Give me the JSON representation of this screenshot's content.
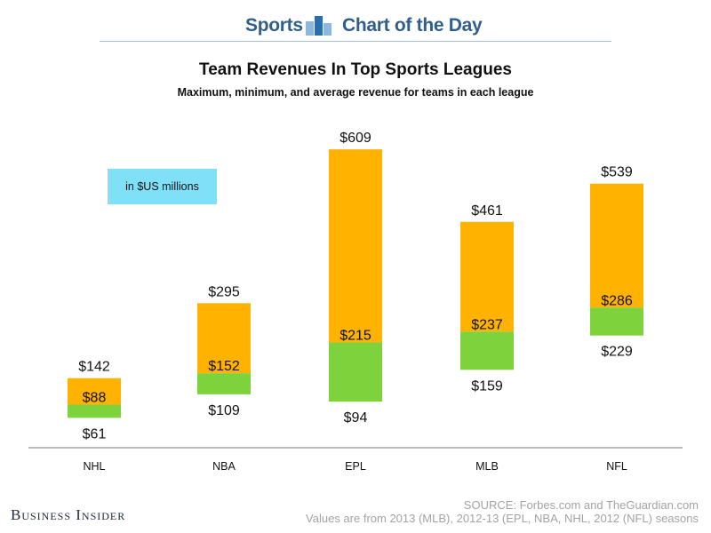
{
  "header": {
    "section": "Sports",
    "feature": "Chart of the Day"
  },
  "chart_data": {
    "type": "bar",
    "title": "Team Revenues In Top Sports Leagues",
    "subtitle": "Maximum, minimum, and average revenue for teams in each league",
    "units_note": "in $US millions",
    "categories": [
      "NHL",
      "NBA",
      "EPL",
      "MLB",
      "NFL"
    ],
    "series": [
      {
        "name": "Maximum",
        "values": [
          142,
          295,
          609,
          461,
          539
        ],
        "labels": [
          "$142",
          "$295",
          "$609",
          "$461",
          "$539"
        ]
      },
      {
        "name": "Average",
        "values": [
          88,
          152,
          215,
          237,
          286
        ],
        "labels": [
          "$88",
          "$152",
          "$215",
          "$237",
          "$286"
        ]
      },
      {
        "name": "Minimum",
        "values": [
          61,
          109,
          94,
          159,
          229
        ],
        "labels": [
          "$61",
          "$109",
          "$94",
          "$159",
          "$229"
        ]
      }
    ],
    "ylim": [
      0,
      660
    ],
    "colors": {
      "upper": "#ffb300",
      "lower": "#7ed23c"
    },
    "xlabel": "",
    "ylabel": ""
  },
  "footer": {
    "brand": "Business Insider",
    "source": "SOURCE: Forbes.com and TheGuardian.com",
    "note": "Values are from 2013 (MLB), 2012-13 (EPL, NBA, NHL, 2012 (NFL) seasons"
  }
}
